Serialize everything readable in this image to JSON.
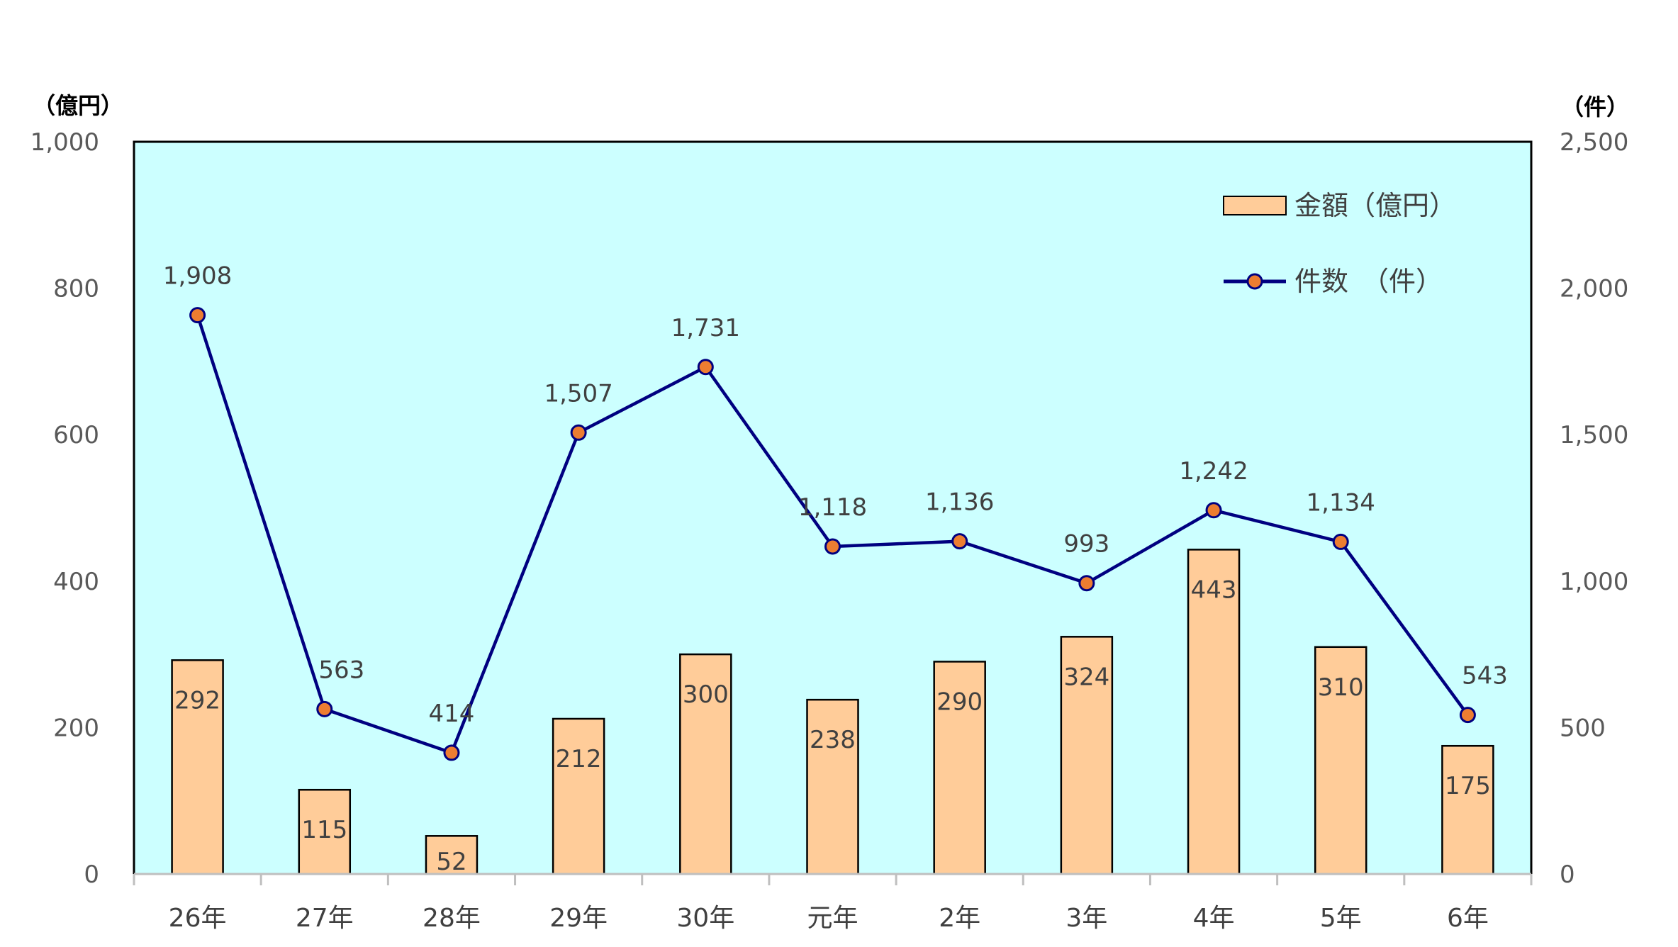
{
  "chart_data": {
    "type": "bar",
    "categories": [
      "26年",
      "27年",
      "28年",
      "29年",
      "30年",
      "元年",
      "2年",
      "3年",
      "4年",
      "5年",
      "6年"
    ],
    "series": [
      {
        "name": "金額（億円）",
        "type": "bar",
        "axis": "left",
        "values": [
          292,
          115,
          52,
          212,
          300,
          238,
          290,
          324,
          443,
          310,
          175
        ],
        "labels": [
          "292",
          "115",
          "52",
          "212",
          "300",
          "238",
          "290",
          "324",
          "443",
          "310",
          "175"
        ],
        "color": "#FFCC99"
      },
      {
        "name": "件数　（件）",
        "type": "line",
        "axis": "right",
        "values": [
          1908,
          563,
          414,
          1507,
          1731,
          1118,
          1136,
          993,
          1242,
          1134,
          543
        ],
        "labels": [
          "1,908",
          "563",
          "414",
          "1,507",
          "1,731",
          "1,118",
          "1,136",
          "993",
          "1,242",
          "1,134",
          "543"
        ],
        "color": "#000080",
        "marker_color": "#ED7D31"
      }
    ],
    "y_left": {
      "unit_label": "（億円）",
      "ylim": [
        0,
        1000
      ],
      "ticks": [
        0,
        200,
        400,
        600,
        800,
        1000
      ],
      "tick_labels": [
        "0",
        "200",
        "400",
        "600",
        "800",
        "1,000"
      ]
    },
    "y_right": {
      "unit_label": "（件）",
      "ylim": [
        0,
        2500
      ],
      "ticks": [
        0,
        500,
        1000,
        1500,
        2000,
        2500
      ],
      "tick_labels": [
        "0",
        "500",
        "1,000",
        "1,500",
        "2,000",
        "2,500"
      ]
    },
    "plot_background": "#CCFFFF",
    "grid": false,
    "legend_position": "top-right"
  }
}
